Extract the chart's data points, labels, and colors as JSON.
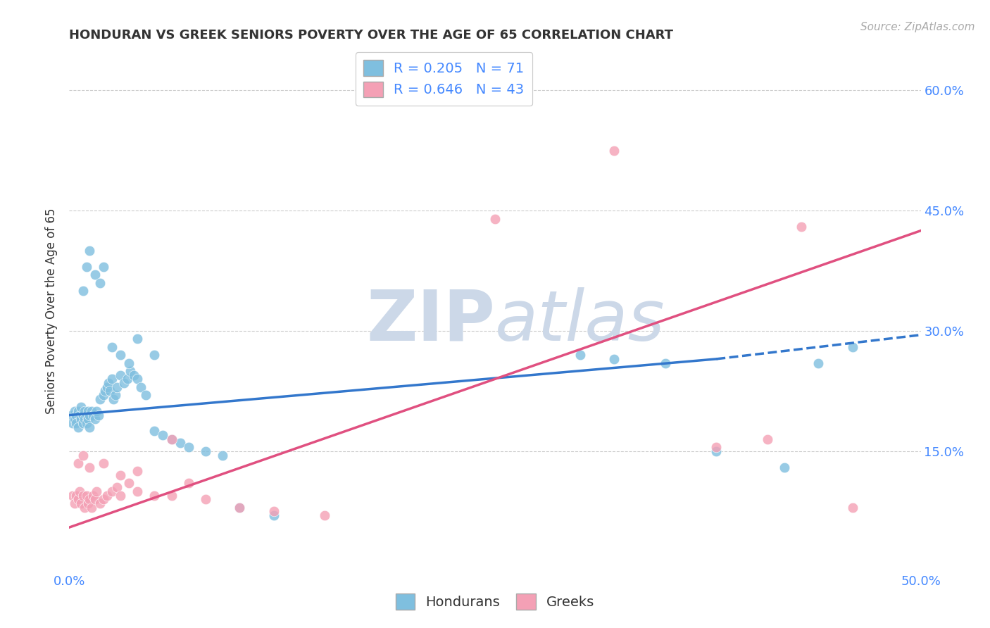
{
  "title": "HONDURAN VS GREEK SENIORS POVERTY OVER THE AGE OF 65 CORRELATION CHART",
  "source": "Source: ZipAtlas.com",
  "ylabel": "Seniors Poverty Over the Age of 65",
  "honduran_R": 0.205,
  "honduran_N": 71,
  "greek_R": 0.646,
  "greek_N": 43,
  "honduran_color": "#7fbfdf",
  "greek_color": "#f4a0b5",
  "honduran_line_color": "#3377cc",
  "greek_line_color": "#e05080",
  "background_color": "#ffffff",
  "grid_color": "#cccccc",
  "xlim": [
    0.0,
    0.5
  ],
  "ylim": [
    0.0,
    0.65
  ],
  "xtick_labels": [
    "0.0%",
    "50.0%"
  ],
  "xtick_vals": [
    0.0,
    0.5
  ],
  "ytick_labels": [
    "15.0%",
    "30.0%",
    "45.0%",
    "60.0%"
  ],
  "ytick_vals": [
    0.15,
    0.3,
    0.45,
    0.6
  ],
  "legend_color": "#4488ff",
  "hon_line_start_x": 0.0,
  "hon_line_start_y": 0.195,
  "hon_line_solid_end_x": 0.38,
  "hon_line_solid_end_y": 0.265,
  "hon_line_dash_end_x": 0.5,
  "hon_line_dash_end_y": 0.295,
  "grk_line_start_x": 0.0,
  "grk_line_start_y": 0.055,
  "grk_line_end_x": 0.5,
  "grk_line_end_y": 0.425,
  "watermark_color": "#ccd8e8",
  "title_fontsize": 13,
  "axis_tick_fontsize": 13,
  "legend_fontsize": 14,
  "source_fontsize": 11,
  "ylabel_fontsize": 12,
  "hon_x": [
    0.001,
    0.002,
    0.003,
    0.003,
    0.004,
    0.004,
    0.005,
    0.005,
    0.006,
    0.007,
    0.007,
    0.008,
    0.008,
    0.009,
    0.009,
    0.01,
    0.01,
    0.011,
    0.011,
    0.012,
    0.012,
    0.013,
    0.014,
    0.015,
    0.016,
    0.017,
    0.018,
    0.02,
    0.021,
    0.022,
    0.023,
    0.024,
    0.025,
    0.026,
    0.027,
    0.028,
    0.03,
    0.032,
    0.034,
    0.036,
    0.038,
    0.04,
    0.042,
    0.045,
    0.05,
    0.055,
    0.06,
    0.065,
    0.07,
    0.08,
    0.09,
    0.1,
    0.12,
    0.008,
    0.01,
    0.012,
    0.015,
    0.018,
    0.02,
    0.025,
    0.03,
    0.035,
    0.04,
    0.05,
    0.3,
    0.32,
    0.35,
    0.38,
    0.42,
    0.44,
    0.46
  ],
  "hon_y": [
    0.195,
    0.185,
    0.2,
    0.19,
    0.195,
    0.185,
    0.2,
    0.18,
    0.195,
    0.19,
    0.205,
    0.185,
    0.195,
    0.2,
    0.19,
    0.195,
    0.185,
    0.2,
    0.19,
    0.195,
    0.18,
    0.2,
    0.195,
    0.19,
    0.2,
    0.195,
    0.215,
    0.22,
    0.225,
    0.23,
    0.235,
    0.225,
    0.24,
    0.215,
    0.22,
    0.23,
    0.245,
    0.235,
    0.24,
    0.25,
    0.245,
    0.24,
    0.23,
    0.22,
    0.175,
    0.17,
    0.165,
    0.16,
    0.155,
    0.15,
    0.145,
    0.08,
    0.07,
    0.35,
    0.38,
    0.4,
    0.37,
    0.36,
    0.38,
    0.28,
    0.27,
    0.26,
    0.29,
    0.27,
    0.27,
    0.265,
    0.26,
    0.15,
    0.13,
    0.26,
    0.28
  ],
  "grk_x": [
    0.002,
    0.003,
    0.004,
    0.005,
    0.006,
    0.007,
    0.008,
    0.009,
    0.01,
    0.011,
    0.012,
    0.013,
    0.014,
    0.015,
    0.016,
    0.018,
    0.02,
    0.022,
    0.025,
    0.028,
    0.03,
    0.035,
    0.04,
    0.05,
    0.06,
    0.07,
    0.08,
    0.1,
    0.12,
    0.15,
    0.005,
    0.008,
    0.012,
    0.02,
    0.03,
    0.04,
    0.06,
    0.25,
    0.32,
    0.38,
    0.41,
    0.43,
    0.46
  ],
  "grk_y": [
    0.095,
    0.085,
    0.095,
    0.09,
    0.1,
    0.085,
    0.095,
    0.08,
    0.095,
    0.085,
    0.09,
    0.08,
    0.095,
    0.09,
    0.1,
    0.085,
    0.09,
    0.095,
    0.1,
    0.105,
    0.095,
    0.11,
    0.1,
    0.095,
    0.095,
    0.11,
    0.09,
    0.08,
    0.075,
    0.07,
    0.135,
    0.145,
    0.13,
    0.135,
    0.12,
    0.125,
    0.165,
    0.44,
    0.525,
    0.155,
    0.165,
    0.43,
    0.08
  ]
}
